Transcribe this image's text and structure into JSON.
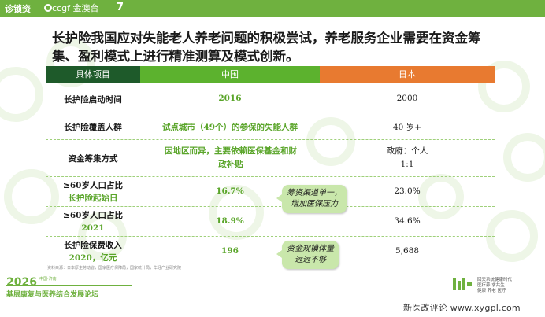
{
  "header": {
    "brand_left": "诊锁资",
    "brand_right": "ccgf 金澳台",
    "page_number": "7"
  },
  "slide": {
    "title": "长护险我国应对失能老人养老问题的积极尝试，养老服务企业需要在资金筹集、盈利模式上进行精准测算及模式创新。"
  },
  "table": {
    "headers": [
      "具体项目",
      "中国",
      "日本"
    ],
    "rows": [
      {
        "item": "长护险启动时间",
        "china": "2016",
        "japan": "2000"
      },
      {
        "item": "长护险覆盖人群",
        "china": "试点城市（49个）的参保的失能人群",
        "japan": "40 岁+"
      },
      {
        "item": "资金筹集方式",
        "china": "因地区而异，主要依赖医保基金和财政补贴",
        "japan_line1": "政府：个人",
        "japan_line2": "1:1"
      },
      {
        "item": "≥60岁人口占比",
        "item_sub": "长护险起始日",
        "china": "16.7%",
        "japan": "23.0%"
      },
      {
        "item": "≥60岁人口占比",
        "item_sub": "2021",
        "china": "18.9%",
        "japan": "34.6%"
      },
      {
        "item": "长护险保费收入",
        "item_sub": "2020，亿元",
        "china": "196",
        "japan": "5,688"
      }
    ]
  },
  "callouts": {
    "c1_line1": "筹资渠道单一，",
    "c1_line2": "增加医保压力",
    "c2_line1": "资金规模体量",
    "c2_line2": "远远不够"
  },
  "source": "资料来源：日本厚生劳动省，国家医疗保障局，国家统计局，华经产业研究院",
  "footer": {
    "year": "2026",
    "tag": "中国·济南",
    "title": "基层康复与医养结合发展论坛",
    "logo_text_line1": "回天系统健康时代",
    "logo_text_line2": "医疗养 求共生",
    "logo_text_line3": "健康 养老 医疗"
  },
  "watermark_site": "新医改评论 www.xygpl.com",
  "colors": {
    "brand_green": "#6fb13f",
    "dark_green": "#1e5a2a",
    "orange": "#e87a30",
    "callout_bg": "#c9e7ab"
  }
}
